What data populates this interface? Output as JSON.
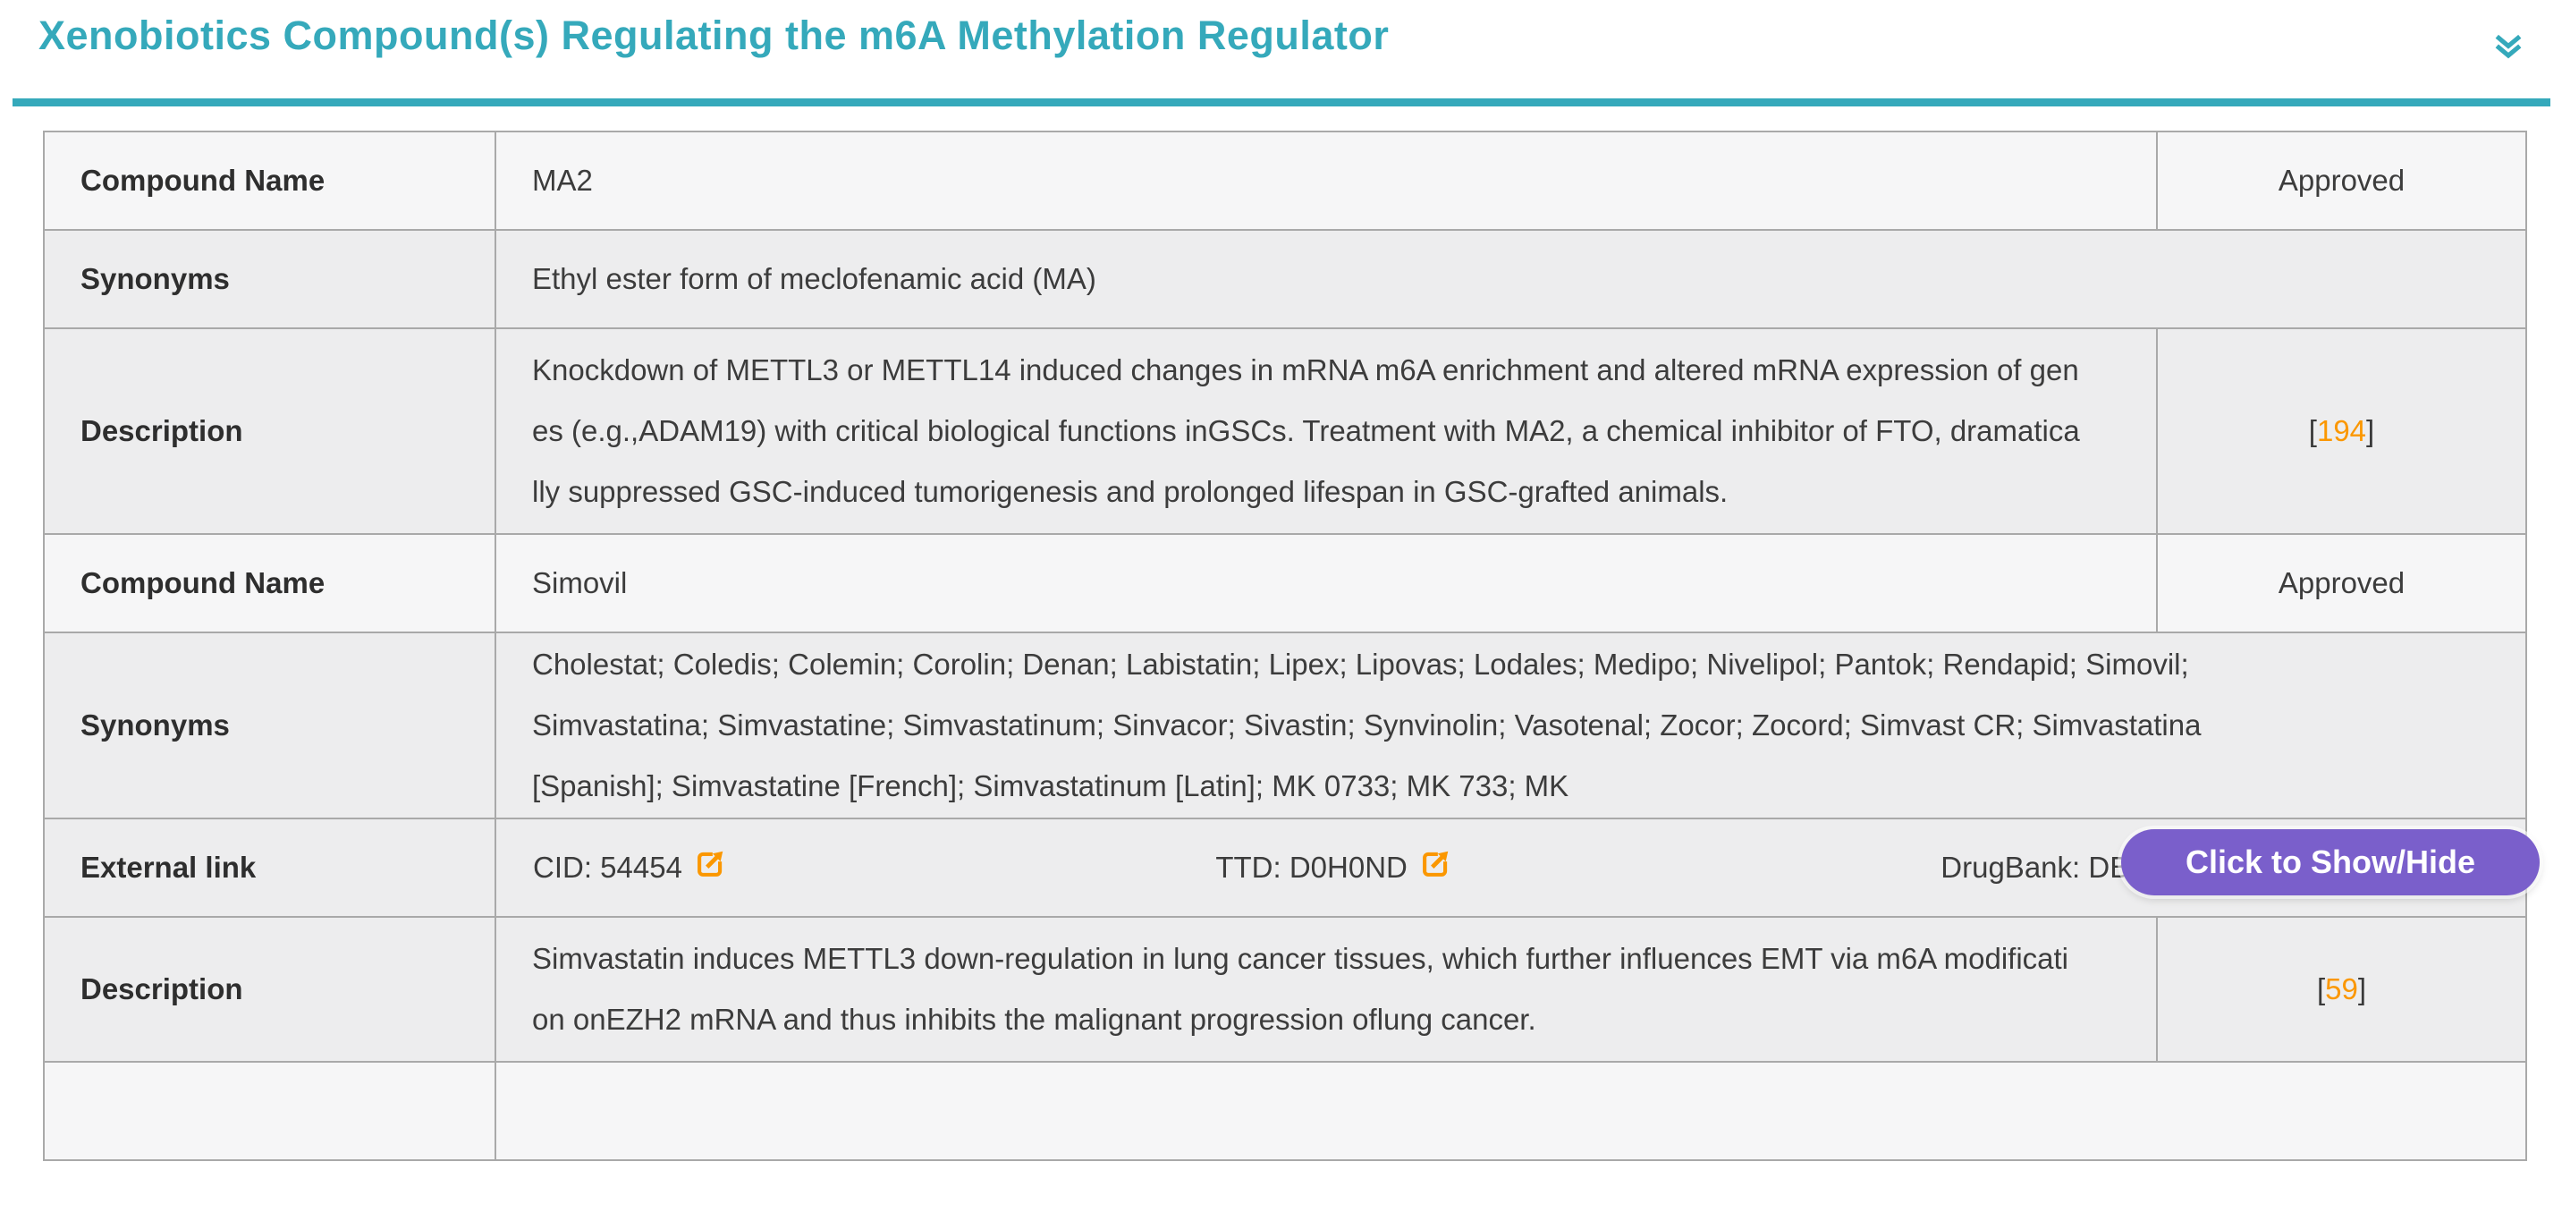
{
  "header": {
    "title": "Xenobiotics Compound(s) Regulating the m6A Methylation Regulator",
    "collapse_icon": "double-chevron-down-icon"
  },
  "colors": {
    "accent": "#35a9bb",
    "button_purple": "#7a5fcb",
    "link_orange": "#fb9700"
  },
  "toggle_button": {
    "label": "Click to Show/Hide"
  },
  "ref_brackets": {
    "open": "[",
    "close": "]"
  },
  "table": {
    "rows": [
      {
        "kind": "field",
        "shade": "light",
        "label": "Compound Name",
        "value": "MA2",
        "status": "Approved"
      },
      {
        "kind": "span",
        "shade": "dark",
        "label": "Synonyms",
        "value": "Ethyl ester form of meclofenamic acid (MA)"
      },
      {
        "kind": "ref",
        "shade": "dark",
        "label": "Description",
        "value": "Knockdown of METTL3 or METTL14 induced changes in mRNA m6A enrichment and altered mRNA expression of genes (e.g.,ADAM19) with critical biological functions inGSCs. Treatment with MA2, a chemical inhibitor of FTO, dramatically suppressed GSC-induced tumorigenesis and prolonged lifespan in GSC-grafted animals.",
        "reference": "194"
      },
      {
        "kind": "field",
        "shade": "light",
        "label": "Compound Name",
        "value": "Simovil",
        "status": "Approved"
      },
      {
        "kind": "span",
        "shade": "dark",
        "clamp": true,
        "has_toggle": true,
        "label": "Synonyms",
        "value": "Cholestat; Coledis; Colemin; Corolin; Denan; Labistatin; Lipex; Lipovas; Lodales; Medipo; Nivelipol; Pantok; Rendapid; Simovil; Simvastatina; Simvastatine; Simvastatinum; Sinvacor; Sivastin; Synvinolin; Vasotenal; Zocor; Zocord; Simvast CR; Simvastatina [Spanish]; Simvastatine [French]; Simvastatinum [Latin]; MK 0733; MK 733; MK"
      },
      {
        "kind": "links",
        "shade": "dark",
        "label": "External link",
        "links": [
          {
            "label": "CID: 54454"
          },
          {
            "label": "TTD: D0H0ND"
          },
          {
            "label": "DrugBank: DB00641"
          }
        ]
      },
      {
        "kind": "ref",
        "shade": "dark",
        "label": "Description",
        "value": "Simvastatin induces METTL3 down-regulation in lung cancer tissues, which further influences EMT via m6A modification onEZH2 mRNA and thus inhibits the malignant progression oflung cancer.",
        "reference": "59"
      },
      {
        "kind": "partial",
        "shade": "light"
      }
    ]
  }
}
